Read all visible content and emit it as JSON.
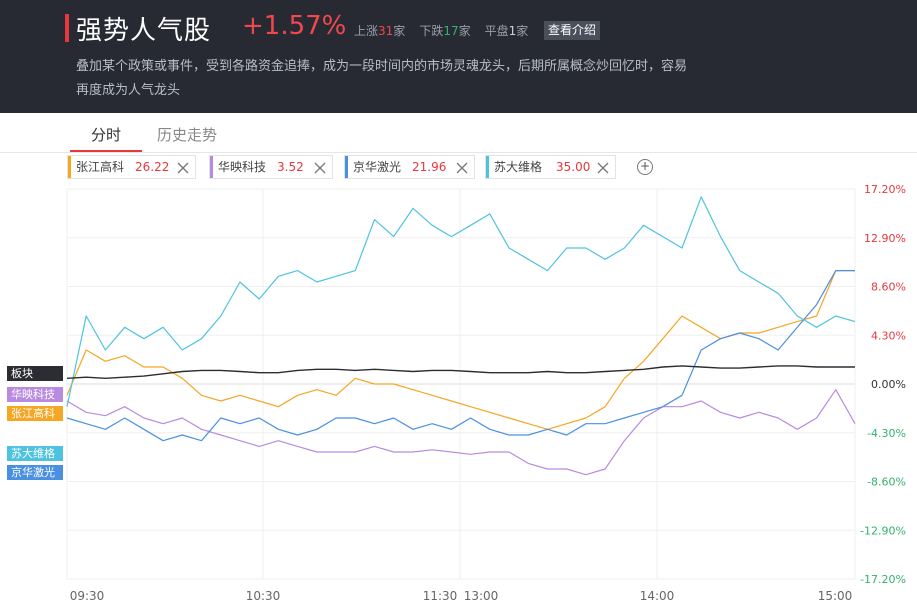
{
  "header": {
    "title": "强势人气股",
    "change_pct": "+1.57%",
    "up_label": "上涨",
    "up_count": "31",
    "down_label": "下跌",
    "down_count": "17",
    "flat_label": "平盘",
    "flat_count": "1",
    "unit": "家",
    "intro_button": "查看介绍",
    "description": "叠加某个政策或事件，受到各路资金追捧，成为一段时间内的市场灵魂龙头，后期所属概念炒回忆时，容易再度成为人气龙头"
  },
  "tabs": [
    {
      "label": "分时",
      "active": true
    },
    {
      "label": "历史走势",
      "active": false
    }
  ],
  "stocks": [
    {
      "name": "张江高科",
      "price": "26.22",
      "color": "#f5a623"
    },
    {
      "name": "华映科技",
      "price": "3.52",
      "color": "#b98be0"
    },
    {
      "name": "京华激光",
      "price": "21.96",
      "color": "#4a90e2"
    },
    {
      "name": "苏大维格",
      "price": "35.00",
      "color": "#4ec3e0"
    }
  ],
  "side_labels": [
    {
      "text": "板块",
      "color": "#2b2d33"
    },
    {
      "text": "华映科技",
      "color": "#b98be0"
    },
    {
      "text": "张江高科",
      "color": "#f5a623"
    },
    {
      "text": "苏大维格",
      "color": "#4ec3e0"
    },
    {
      "text": "京华激光",
      "color": "#4a90e2"
    }
  ],
  "colors": {
    "up": "#e8383d",
    "down": "#32b36b",
    "sector": "#2b2d33"
  },
  "chart_data": {
    "type": "line",
    "x_ticks": [
      "09:30",
      "10:30",
      "11:30",
      "13:00",
      "14:00",
      "15:00"
    ],
    "y_ticks": [
      "17.20%",
      "12.90%",
      "8.60%",
      "4.30%",
      "0.00%",
      "-4.30%",
      "-8.60%",
      "-12.90%",
      "-17.20%"
    ],
    "ylim": [
      -17.2,
      17.2
    ],
    "grid": true,
    "series": [
      {
        "name": "板块",
        "color": "#2b2d33",
        "values": [
          0.5,
          0.6,
          0.5,
          0.6,
          0.7,
          0.9,
          1.1,
          1.2,
          1.2,
          1.1,
          1.0,
          1.0,
          1.2,
          1.3,
          1.3,
          1.2,
          1.3,
          1.2,
          1.1,
          1.2,
          1.2,
          1.1,
          1.0,
          1.0,
          1.0,
          1.1,
          1.0,
          1.0,
          1.1,
          1.2,
          1.3,
          1.5,
          1.6,
          1.5,
          1.4,
          1.4,
          1.5,
          1.6,
          1.6,
          1.5,
          1.5,
          1.5
        ]
      },
      {
        "name": "华映科技",
        "color": "#b98be0",
        "values": [
          -1.5,
          -2.5,
          -2.8,
          -2.0,
          -3.0,
          -3.5,
          -3.0,
          -4.0,
          -4.5,
          -5.0,
          -5.5,
          -5.0,
          -5.5,
          -6.0,
          -6.0,
          -6.0,
          -5.5,
          -6.0,
          -6.0,
          -5.8,
          -6.0,
          -6.2,
          -6.0,
          -6.0,
          -7.0,
          -7.5,
          -7.5,
          -8.0,
          -7.5,
          -5.0,
          -3.0,
          -2.0,
          -2.0,
          -1.5,
          -2.5,
          -3.0,
          -2.5,
          -3.0,
          -4.0,
          -3.0,
          -0.5,
          -3.5
        ]
      },
      {
        "name": "张江高科",
        "color": "#f5a623",
        "values": [
          -1.0,
          3.0,
          2.0,
          2.5,
          1.5,
          1.5,
          0.5,
          -1.0,
          -1.5,
          -1.0,
          -1.5,
          -2.0,
          -1.0,
          -0.5,
          -1.0,
          0.5,
          0.0,
          0.0,
          -0.5,
          -1.0,
          -1.5,
          -2.0,
          -2.5,
          -3.0,
          -3.5,
          -4.0,
          -3.5,
          -3.0,
          -2.0,
          0.5,
          2.0,
          4.0,
          6.0,
          5.0,
          4.0,
          4.5,
          4.5,
          5.0,
          5.5,
          6.0,
          10.0,
          10.0
        ]
      },
      {
        "name": "苏大维格",
        "color": "#4ec3e0",
        "values": [
          -2.0,
          6.0,
          3.0,
          5.0,
          4.0,
          5.0,
          3.0,
          4.0,
          6.0,
          9.0,
          7.5,
          9.5,
          10.0,
          9.0,
          9.5,
          10.0,
          14.5,
          13.0,
          15.5,
          14.0,
          13.0,
          14.0,
          15.0,
          12.0,
          11.0,
          10.0,
          12.0,
          12.0,
          11.0,
          12.0,
          14.0,
          13.0,
          12.0,
          16.5,
          13.0,
          10.0,
          9.0,
          8.0,
          6.0,
          5.0,
          6.0,
          5.5
        ]
      },
      {
        "name": "京华激光",
        "color": "#4a90e2",
        "values": [
          -3.0,
          -3.5,
          -4.0,
          -3.0,
          -4.0,
          -5.0,
          -4.5,
          -5.0,
          -3.0,
          -3.5,
          -3.0,
          -4.0,
          -4.5,
          -4.0,
          -3.0,
          -3.0,
          -3.5,
          -3.0,
          -4.0,
          -3.5,
          -4.0,
          -3.0,
          -4.0,
          -4.5,
          -4.5,
          -4.0,
          -4.5,
          -3.5,
          -3.5,
          -3.0,
          -2.5,
          -2.0,
          -1.0,
          3.0,
          4.0,
          4.5,
          4.0,
          3.0,
          5.0,
          7.0,
          10.0,
          10.0
        ]
      }
    ]
  }
}
